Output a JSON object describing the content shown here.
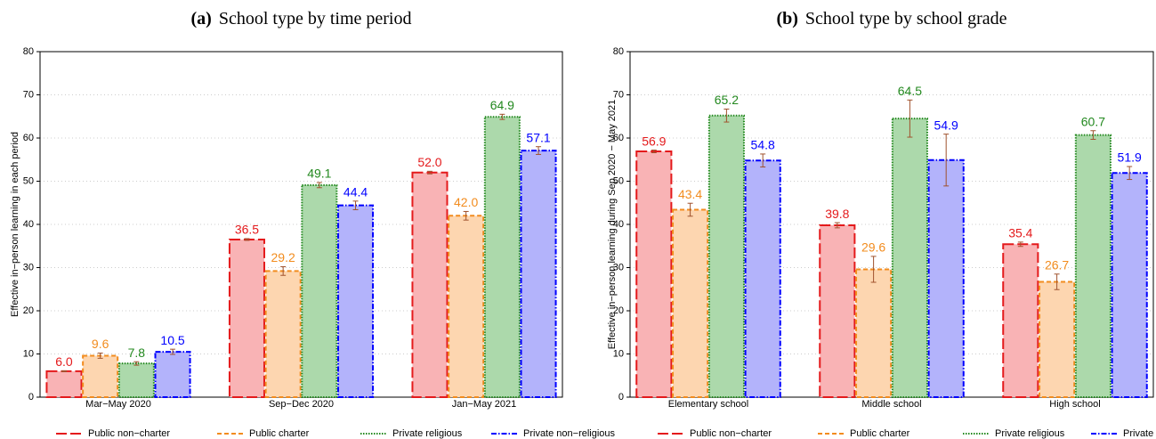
{
  "chart_data": [
    {
      "type": "bar",
      "panel": "(a)",
      "title": "School type by time period",
      "y_label": "Effective in−person learning in each period",
      "categories": [
        "Mar−May 2020",
        "Sep−Dec 2020",
        "Jan−May 2021"
      ],
      "ylim": [
        0,
        80
      ],
      "yticks": [
        0,
        10,
        20,
        30,
        40,
        50,
        60,
        70,
        80
      ],
      "grid": true,
      "legend": "bottom",
      "error_color": "#a0522d",
      "series": [
        {
          "name": "Public non−charter",
          "color": "#e41a1c",
          "fill": "#f9b3b5",
          "linestyle": "longdash",
          "values": [
            6.0,
            36.5,
            52.0
          ],
          "value_labels": [
            "6.0",
            "36.5",
            "52.0"
          ],
          "errors": [
            0.1,
            0.2,
            0.3
          ]
        },
        {
          "name": "Public charter",
          "color": "#f28c1e",
          "fill": "#fdd6b0",
          "linestyle": "dashed",
          "values": [
            9.6,
            29.2,
            42.0
          ],
          "value_labels": [
            "9.6",
            "29.2",
            "42.0"
          ],
          "errors": [
            0.6,
            1.0,
            1.0
          ]
        },
        {
          "name": "Private religious",
          "color": "#22881e",
          "fill": "#acd9ab",
          "linestyle": "dotted",
          "values": [
            7.8,
            49.1,
            64.9
          ],
          "value_labels": [
            "7.8",
            "49.1",
            "64.9"
          ],
          "errors": [
            0.4,
            0.6,
            0.6
          ]
        },
        {
          "name": "Private non−religious",
          "color": "#0000ff",
          "fill": "#b3b3fb",
          "linestyle": "dashdot",
          "values": [
            10.5,
            44.4,
            57.1
          ],
          "value_labels": [
            "10.5",
            "44.4",
            "57.1"
          ],
          "errors": [
            0.6,
            1.0,
            0.9
          ]
        }
      ]
    },
    {
      "type": "bar",
      "panel": "(b)",
      "title": "School type by school grade",
      "y_label": "Effective in−person learning during Sep 2020 − May 2021",
      "categories": [
        "Elementary school",
        "Middle school",
        "High school"
      ],
      "ylim": [
        0,
        80
      ],
      "yticks": [
        0,
        10,
        20,
        30,
        40,
        50,
        60,
        70,
        80
      ],
      "grid": true,
      "legend": "bottom",
      "error_color": "#a0522d",
      "series": [
        {
          "name": "Public non−charter",
          "color": "#e41a1c",
          "fill": "#f9b3b5",
          "linestyle": "longdash",
          "values": [
            56.9,
            39.8,
            35.4
          ],
          "value_labels": [
            "56.9",
            "39.8",
            "35.4"
          ],
          "errors": [
            0.3,
            0.6,
            0.5
          ]
        },
        {
          "name": "Public charter",
          "color": "#f28c1e",
          "fill": "#fdd6b0",
          "linestyle": "dashed",
          "values": [
            43.4,
            29.6,
            26.7
          ],
          "value_labels": [
            "43.4",
            "29.6",
            "26.7"
          ],
          "errors": [
            1.5,
            3.0,
            1.8
          ]
        },
        {
          "name": "Private religious",
          "color": "#22881e",
          "fill": "#acd9ab",
          "linestyle": "dotted",
          "values": [
            65.2,
            64.5,
            60.7
          ],
          "value_labels": [
            "65.2",
            "64.5",
            "60.7"
          ],
          "errors": [
            1.5,
            4.3,
            1.0
          ]
        },
        {
          "name": "Private non−religious",
          "color": "#0000ff",
          "fill": "#b3b3fb",
          "linestyle": "dashdot",
          "values": [
            54.8,
            54.9,
            51.9
          ],
          "value_labels": [
            "54.8",
            "54.9",
            "51.9"
          ],
          "errors": [
            1.5,
            6.0,
            1.5
          ]
        }
      ]
    }
  ]
}
